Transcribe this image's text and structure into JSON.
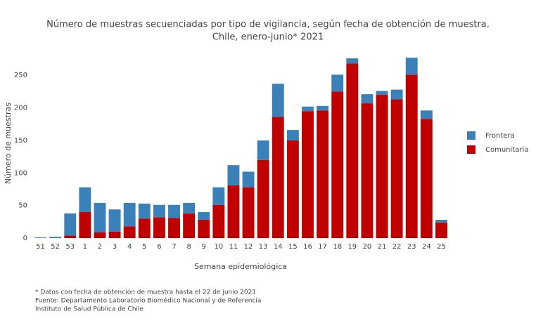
{
  "chart_data": {
    "type": "stacked-bar",
    "title": "Número de muestras secuenciadas por tipo de vigilancia, según fecha de obtención de muestra.",
    "subtitle": "Chile, enero-junio* 2021",
    "x_label": "Semana epidemiológica",
    "y_label": "Número de muestras",
    "categories": [
      "51",
      "52",
      "53",
      "1",
      "2",
      "3",
      "4",
      "5",
      "6",
      "7",
      "8",
      "9",
      "10",
      "11",
      "12",
      "13",
      "14",
      "15",
      "16",
      "17",
      "18",
      "19",
      "20",
      "21",
      "22",
      "23",
      "24",
      "25"
    ],
    "series": [
      {
        "name": "Comunitaria",
        "color": "#c00000",
        "values": [
          0,
          0,
          4,
          40,
          9,
          10,
          18,
          30,
          32,
          31,
          38,
          28,
          51,
          81,
          78,
          120,
          186,
          150,
          195,
          196,
          225,
          268,
          207,
          220,
          213,
          251,
          183,
          24
        ]
      },
      {
        "name": "Frontera",
        "color": "#3a80b9",
        "values": [
          1,
          2,
          34,
          38,
          45,
          34,
          36,
          23,
          19,
          20,
          16,
          12,
          27,
          31,
          24,
          30,
          51,
          16,
          7,
          7,
          26,
          8,
          14,
          6,
          15,
          26,
          13,
          4
        ]
      }
    ],
    "ylim": [
      0,
      288
    ],
    "yticks": [
      0,
      50,
      100,
      150,
      200,
      250
    ],
    "grid": false,
    "legend_position": "right",
    "notes": [
      "* Datos con fecha de obtención de muestra hasta el 22 de junio 2021",
      "Fuente: Departamento Laboratorio Biomédico Nacional y de Referencia",
      "Instituto de Salud Pública de Chile"
    ]
  }
}
